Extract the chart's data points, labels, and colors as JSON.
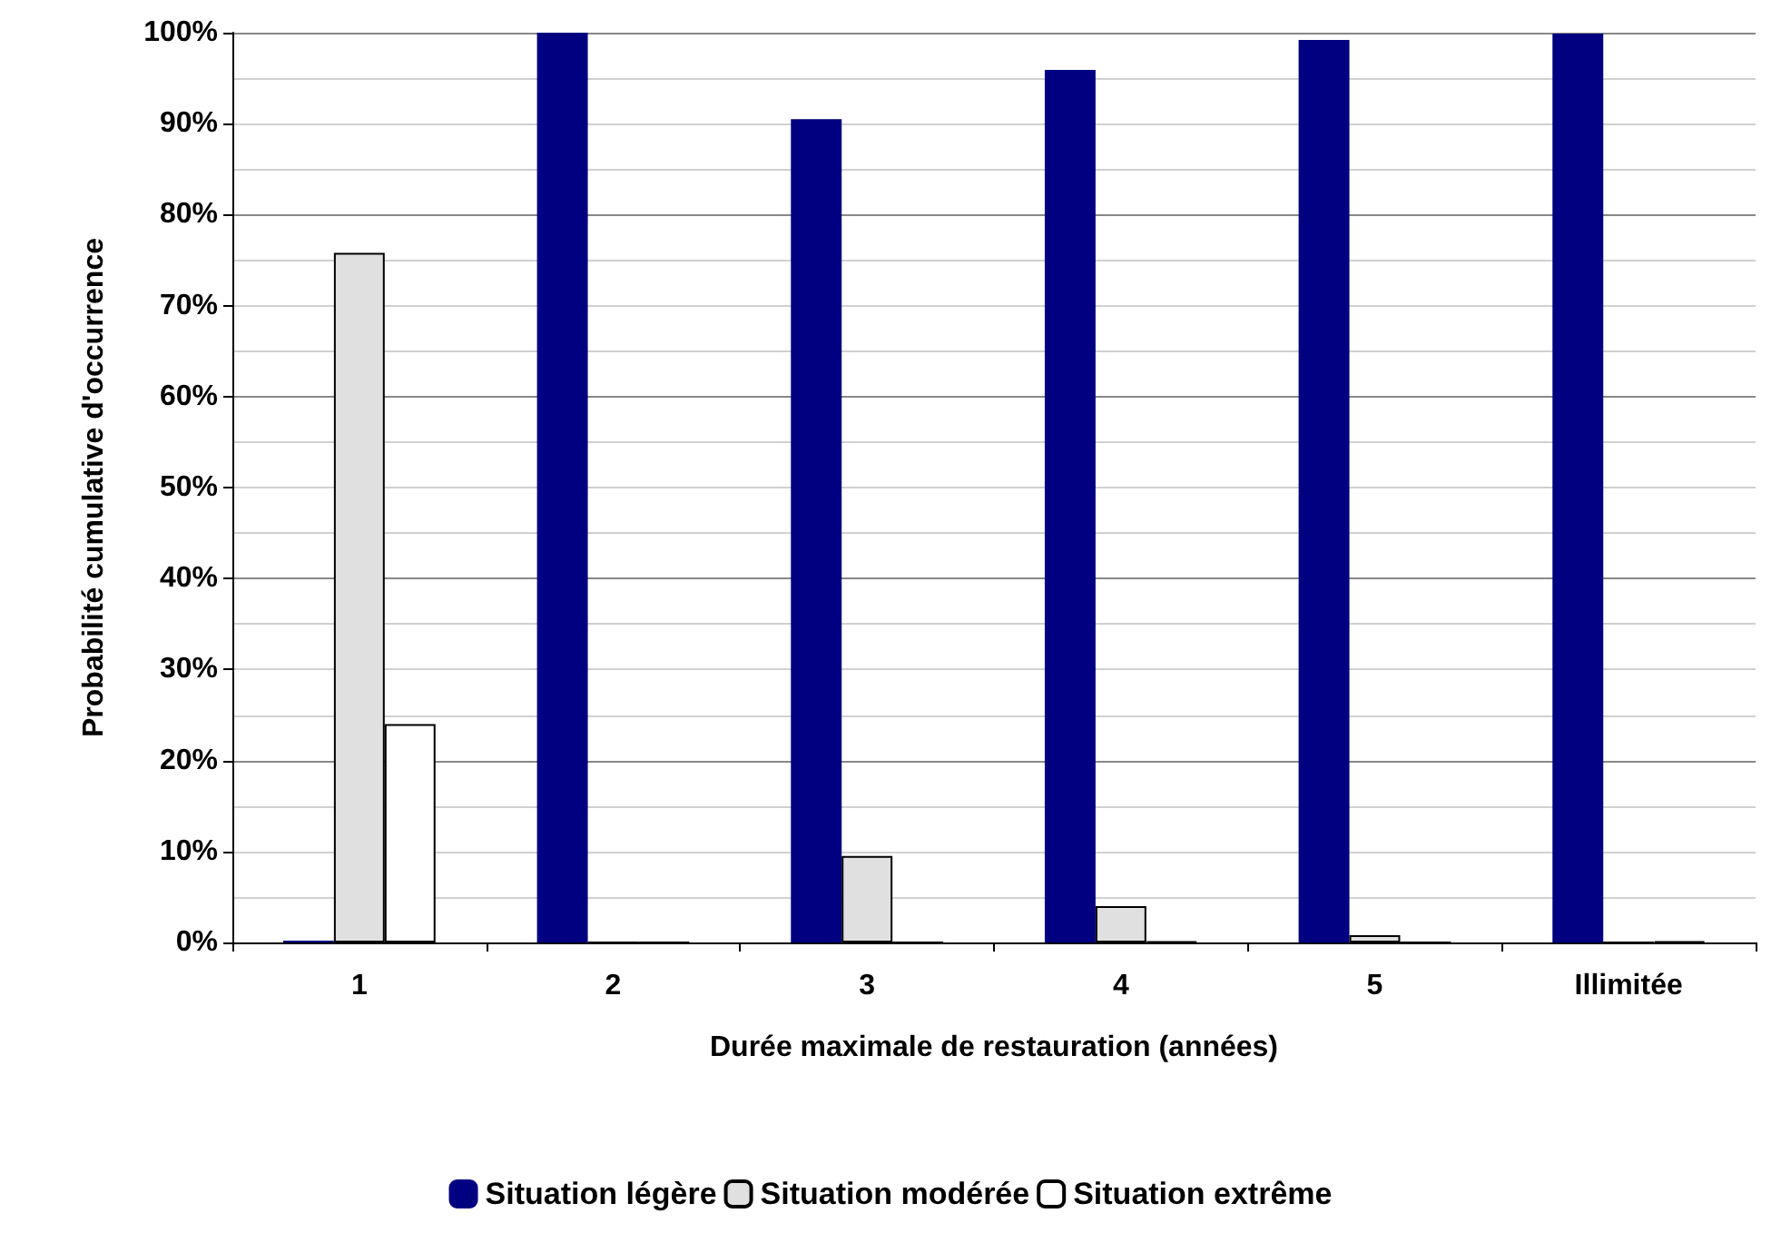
{
  "chart_data": {
    "type": "bar",
    "xlabel": "Durée maximale de restauration (années)",
    "ylabel": "Probabilité cumulative d'occurrence",
    "categories": [
      "1",
      "2",
      "3",
      "4",
      "5",
      "Illimitée"
    ],
    "series": [
      {
        "name": "Situation légère",
        "color": "#000080",
        "values": [
          0.2,
          100,
          90.5,
          95.9,
          99.2,
          99.9
        ]
      },
      {
        "name": "Situation modérée",
        "color": "#e0e0e0",
        "values": [
          75.8,
          0,
          9.5,
          4.0,
          0.8,
          0
        ]
      },
      {
        "name": "Situation extrême",
        "color": "#ffffff",
        "values": [
          24.0,
          0,
          0,
          0.1,
          0,
          0.1
        ]
      }
    ],
    "ylim": [
      0,
      100
    ],
    "yticks": [
      {
        "value": 0,
        "label": "0%"
      },
      {
        "value": 10,
        "label": "10%"
      },
      {
        "value": 20,
        "label": "20%"
      },
      {
        "value": 30,
        "label": "30%"
      },
      {
        "value": 40,
        "label": "40%"
      },
      {
        "value": 50,
        "label": "50%"
      },
      {
        "value": 60,
        "label": "60%"
      },
      {
        "value": 70,
        "label": "70%"
      },
      {
        "value": 80,
        "label": "80%"
      },
      {
        "value": 90,
        "label": "90%"
      },
      {
        "value": 100,
        "label": "100%"
      }
    ],
    "grid": "y",
    "legend": "bottom"
  }
}
